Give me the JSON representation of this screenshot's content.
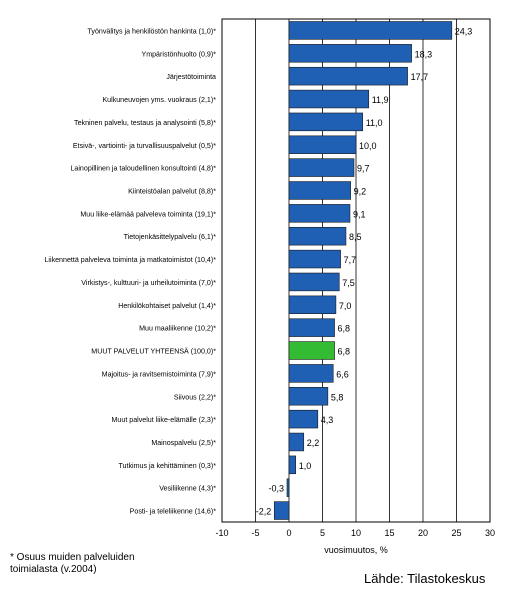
{
  "chart_data": {
    "type": "bar",
    "orientation": "horizontal",
    "xlabel": "vuosimuutos, %",
    "xlim": [
      -10,
      30
    ],
    "xticks": [
      -10,
      -5,
      0,
      5,
      10,
      15,
      20,
      25,
      30
    ],
    "xgrid": true,
    "categories": [
      "Työnvälitys ja henkilöstön hankinta (1,0)*",
      "Ympäristönhuolto (0,9)*",
      "Järjestötoiminta",
      "Kulkuneuvojen yms. vuokraus (2,1)*",
      "Tekninen palvelu, testaus ja analysointi (5,8)*",
      "Etsivä-, vartiointi- ja turvallisuuspalvelut (0,5)*",
      "Lainopillinen ja taloudellinen konsultointi (4,8)*",
      "Kiinteistöalan palvelut (8,8)*",
      "Muu liike-elämää palveleva toiminta (19,1)*",
      "Tietojenkäsittelypalvelu (6,1)*",
      "Liikennettä palveleva toiminta ja matkatoimistot (10,4)*",
      "Virkistys-, kulttuuri- ja urheilutoiminta (7,0)*",
      "Henkilökohtaiset palvelut (1,4)*",
      "Muu maaliikenne (10,2)*",
      "MUUT PALVELUT YHTEENSÄ (100,0)*",
      "Majoitus- ja ravitsemistoiminta (7,9)*",
      "Siivous (2,2)*",
      "Muut palvelut liike-elämälle (2,3)*",
      "Mainospalvelu (2,5)*",
      "Tutkimus ja kehittäminen (0,3)*",
      "Vesiliikenne (4,3)*",
      "Posti- ja teleliikenne (14,6)*"
    ],
    "values": [
      24.3,
      18.3,
      17.7,
      11.9,
      11.0,
      10.0,
      9.7,
      9.2,
      9.1,
      8.5,
      7.7,
      7.5,
      7.0,
      6.8,
      6.8,
      6.6,
      5.8,
      4.3,
      2.2,
      1.0,
      -0.3,
      -2.2
    ],
    "value_labels": [
      "24,3",
      "18,3",
      "17,7",
      "11,9",
      "11,0",
      "10,0",
      "9,7",
      "9,2",
      "9,1",
      "8,5",
      "7,7",
      "7,5",
      "7,0",
      "6,8",
      "6,8",
      "6,6",
      "5,8",
      "4,3",
      "2,2",
      "1,0",
      "-0,3",
      "-2,2"
    ],
    "highlight_index": 14,
    "colors": {
      "bar": "#1f5fb4",
      "highlight": "#33bb33",
      "grid": "#000000"
    }
  },
  "footnote": [
    "* Osuus muiden palveluiden",
    "toimialasta (v.2004)"
  ],
  "source": "Lähde: Tilastokeskus"
}
